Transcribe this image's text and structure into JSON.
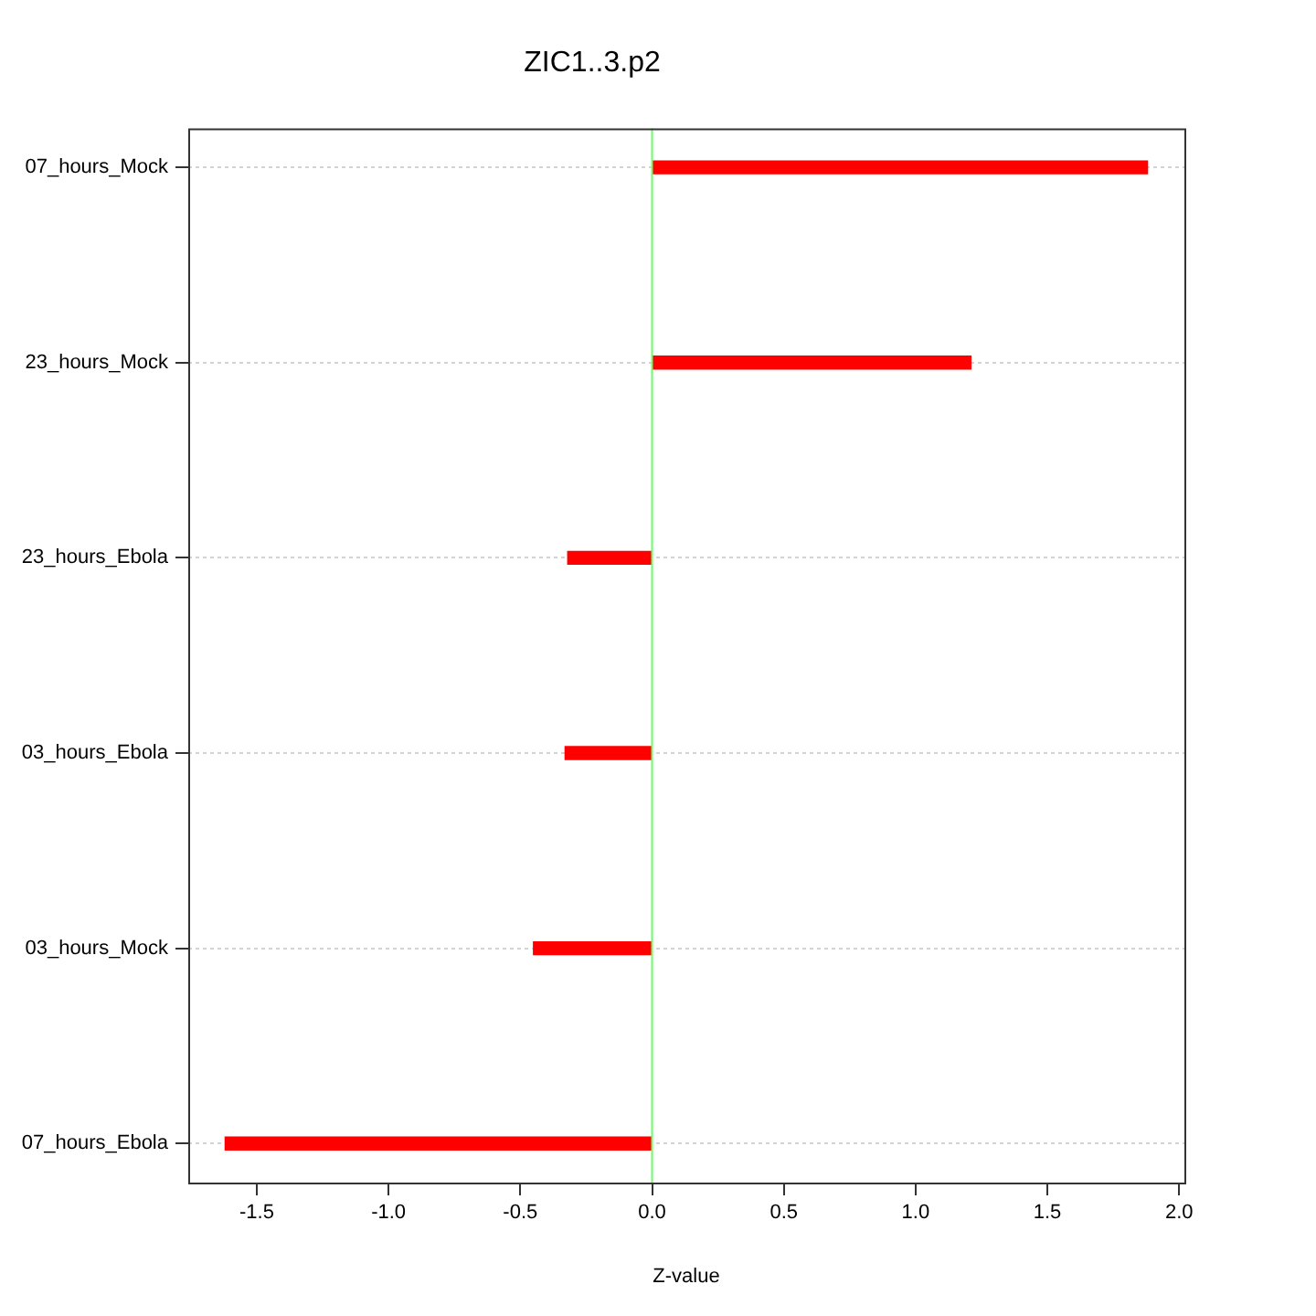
{
  "chart_data": {
    "type": "bar",
    "orientation": "horizontal",
    "title": "ZIC1..3.p2",
    "xlabel": "Z-value",
    "categories": [
      "07_hours_Mock",
      "23_hours_Mock",
      "23_hours_Ebola",
      "03_hours_Ebola",
      "03_hours_Mock",
      "07_hours_Ebola"
    ],
    "values": [
      1.88,
      1.21,
      -0.32,
      -0.33,
      -0.45,
      -1.62
    ],
    "color": "#ff0000",
    "xlim": [
      -1.76,
      2.02
    ],
    "xticks": [
      -1.5,
      {
        "value": -1,
        "label": "-1.0"
      },
      -0.5,
      {
        "value": 0,
        "label": "0.0"
      },
      0.5,
      {
        "value": 1,
        "label": "1.0"
      },
      1.5,
      {
        "value": 2,
        "label": "2.0"
      }
    ],
    "ref_lines": [
      {
        "axis": "x",
        "value": 0,
        "color": "#66ff66"
      }
    ],
    "grid": "y"
  }
}
